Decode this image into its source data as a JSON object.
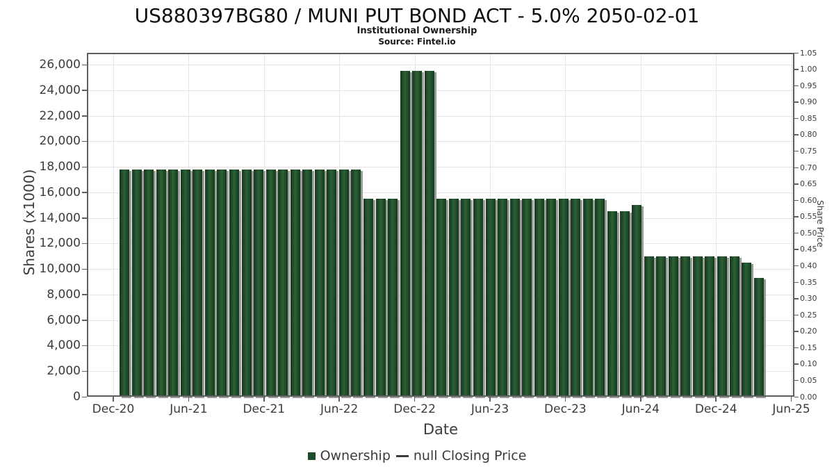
{
  "header": {
    "title": "US880397BG80 / MUNI PUT BOND ACT - 5.0% 2050-02-01",
    "subtitle": "Institutional Ownership",
    "source": "Source: Fintel.io"
  },
  "axes": {
    "left_label": "Shares (x1000)",
    "right_label": "Share Price",
    "x_label": "Date",
    "left_tick_labels": [
      "26,000",
      "24,000",
      "22,000",
      "20,000",
      "18,000",
      "16,000",
      "14,000",
      "12,000",
      "10,000",
      "8,000",
      "6,000",
      "4,000",
      "2,000",
      "0"
    ],
    "right_tick_labels": [
      "1.05",
      "1.00",
      "0.95",
      "0.90",
      "0.85",
      "0.80",
      "0.75",
      "0.70",
      "0.65",
      "0.60",
      "0.55",
      "0.50",
      "0.45",
      "0.40",
      "0.35",
      "0.30",
      "0.25",
      "0.20",
      "0.15",
      "0.10",
      "0.05",
      "0.00"
    ],
    "x_tick_labels": [
      "Dec-20",
      "Jun-21",
      "Dec-21",
      "Jun-22",
      "Dec-22",
      "Jun-23",
      "Dec-23",
      "Jun-24",
      "Dec-24",
      "Jun-25"
    ]
  },
  "legend": {
    "ownership_label": "Ownership",
    "price_line_label": "null Closing Price"
  },
  "colors": {
    "bar_green": "#1e4b2a",
    "bar_shadow": "#9b9b9b",
    "grid": "#e2e2e2",
    "frame": "#5e5e5e",
    "text": "#3b3b3b"
  },
  "chart_data": {
    "type": "bar",
    "title": "US880397BG80 / MUNI PUT BOND ACT - 5.0% 2050-02-01",
    "subtitle": "Institutional Ownership",
    "source": "Source: Fintel.io",
    "xlabel": "Date",
    "ylabel_left": "Shares (x1000)",
    "ylabel_right": "Share Price",
    "ylim_left": [
      0,
      26000
    ],
    "ytick_step_left": 2000,
    "ylim_right": [
      0,
      1.05
    ],
    "ytick_step_right": 0.05,
    "grid": true,
    "legend_position": "bottom",
    "x": [
      "Dec-20",
      "Jan-21",
      "Feb-21",
      "Mar-21",
      "Apr-21",
      "May-21",
      "Jun-21",
      "Jul-21",
      "Aug-21",
      "Sep-21",
      "Oct-21",
      "Nov-21",
      "Dec-21",
      "Jan-22",
      "Feb-22",
      "Mar-22",
      "Apr-22",
      "May-22",
      "Jun-22",
      "Jul-22",
      "Aug-22",
      "Sep-22",
      "Oct-22",
      "Nov-22",
      "Dec-22",
      "Jan-23",
      "Feb-23",
      "Mar-23",
      "Apr-23",
      "May-23",
      "Jun-23",
      "Jul-23",
      "Aug-23",
      "Sep-23",
      "Oct-23",
      "Nov-23",
      "Dec-23",
      "Jan-24",
      "Feb-24",
      "Mar-24",
      "Apr-24",
      "May-24",
      "Jun-24",
      "Jul-24",
      "Aug-24",
      "Sep-24",
      "Oct-24",
      "Nov-24",
      "Dec-24",
      "Jan-25",
      "Feb-25",
      "Mar-25",
      "Apr-25"
    ],
    "series": [
      {
        "name": "Ownership",
        "units": "shares x1000",
        "values": [
          17800,
          17800,
          17800,
          17800,
          17800,
          17800,
          17800,
          17800,
          17800,
          17800,
          17800,
          17800,
          17800,
          17800,
          17800,
          17800,
          17800,
          17800,
          17800,
          17800,
          15500,
          15500,
          15500,
          25500,
          25500,
          25500,
          15500,
          15500,
          15500,
          15500,
          15500,
          15500,
          15500,
          15500,
          15500,
          15500,
          15500,
          15500,
          15500,
          15500,
          14500,
          14500,
          15000,
          11000,
          11000,
          11000,
          11000,
          11000,
          11000,
          11000,
          11000,
          10500,
          9300
        ]
      },
      {
        "name": "null Closing Price",
        "units": "share price",
        "values": []
      }
    ]
  }
}
